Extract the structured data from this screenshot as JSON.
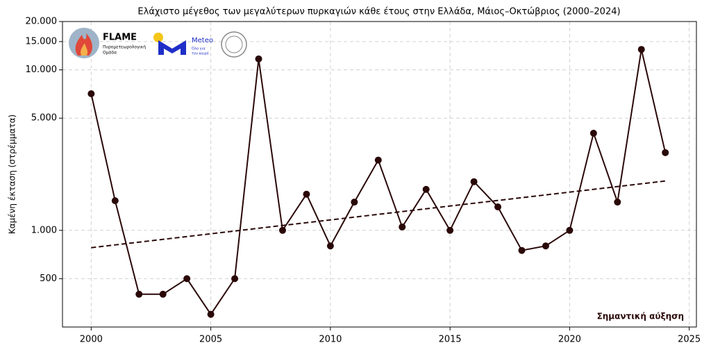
{
  "chart_data": {
    "type": "line",
    "title": "Ελάχιστο μέγεθος των μεγαλύτερων πυρκαγιών κάθε έτους στην Ελλάδα, Μάιος–Οκτώβριος (2000–2024)",
    "y_label": "Καμένη έκταση (στρέμματα)",
    "annotation": "Σημαντική αύξηση",
    "logos": {
      "flame_title": "FLAME",
      "flame_sub1": "Πυρομετεωρολογική",
      "flame_sub2": "Ομάδα",
      "meteo_title": "Meteo",
      "meteo_sub1": "Όλο για",
      "meteo_sub2": "τον καιρό"
    },
    "x": [
      2000,
      2001,
      2002,
      2003,
      2004,
      2005,
      2006,
      2007,
      2008,
      2009,
      2010,
      2011,
      2012,
      2013,
      2014,
      2015,
      2016,
      2017,
      2018,
      2019,
      2020,
      2021,
      2022,
      2023,
      2024
    ],
    "series": [
      {
        "color": "#2a0808",
        "values": [
          7100,
          1530,
          400,
          400,
          500,
          300,
          500,
          11700,
          1000,
          1680,
          800,
          1500,
          2740,
          1050,
          1800,
          1000,
          2010,
          1400,
          750,
          800,
          1000,
          4030,
          1500,
          13400,
          3050
        ]
      }
    ],
    "trend": {
      "color": "#2a0808",
      "x": [
        2000,
        2024
      ],
      "values": [
        780,
        2030
      ]
    },
    "xlim": [
      1998.8,
      2025.3
    ],
    "xticks": [
      2000,
      2005,
      2010,
      2015,
      2020,
      2025
    ],
    "ylim": [
      250,
      20000
    ],
    "yscale": "log",
    "yticks": [
      {
        "value": 500,
        "label": "500"
      },
      {
        "value": 1000,
        "label": "1.000"
      },
      {
        "value": 5000,
        "label": "5.000"
      },
      {
        "value": 10000,
        "label": "10.000"
      },
      {
        "value": 15000,
        "label": "15.000"
      },
      {
        "value": 20000,
        "label": "20.000"
      }
    ],
    "grid": true
  }
}
